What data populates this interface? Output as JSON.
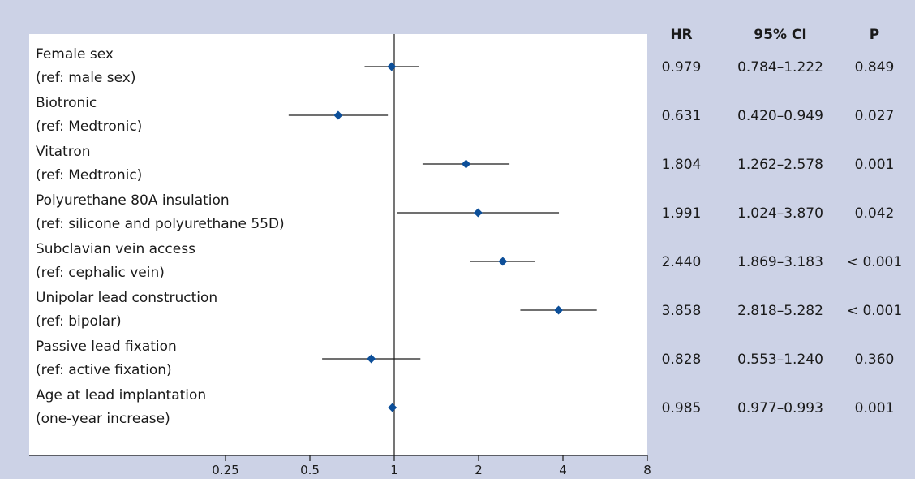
{
  "chart_data": {
    "type": "forest",
    "title": "",
    "xlabel": "",
    "ylabel": "",
    "x_scale": "log2",
    "xlim": [
      0.125,
      8
    ],
    "xticks": [
      0.25,
      0.5,
      1,
      2,
      4,
      8
    ],
    "xtick_labels": [
      "0.25",
      "0.5",
      "1",
      "2",
      "4",
      "8"
    ],
    "reference_line": 1,
    "columns": {
      "hr": "HR",
      "ci": "95% CI",
      "p": "P"
    },
    "rows": [
      {
        "label": "Female sex",
        "ref": "(ref: male sex)",
        "hr": 0.979,
        "ci_low": 0.784,
        "ci_high": 1.222,
        "hr_text": "0.979",
        "ci_text": "0.784–1.222",
        "p_text": "0.849"
      },
      {
        "label": "Biotronic",
        "ref": "(ref: Medtronic)",
        "hr": 0.631,
        "ci_low": 0.42,
        "ci_high": 0.949,
        "hr_text": "0.631",
        "ci_text": "0.420–0.949",
        "p_text": "0.027"
      },
      {
        "label": "Vitatron",
        "ref": "(ref: Medtronic)",
        "hr": 1.804,
        "ci_low": 1.262,
        "ci_high": 2.578,
        "hr_text": "1.804",
        "ci_text": "1.262–2.578",
        "p_text": "0.001"
      },
      {
        "label": "Polyurethane 80A insulation",
        "ref": "(ref: silicone and polyurethane 55D)",
        "hr": 1.991,
        "ci_low": 1.024,
        "ci_high": 3.87,
        "hr_text": "1.991",
        "ci_text": "1.024–3.870",
        "p_text": "0.042"
      },
      {
        "label": "Subclavian vein access",
        "ref": "(ref: cephalic vein)",
        "hr": 2.44,
        "ci_low": 1.869,
        "ci_high": 3.183,
        "hr_text": "2.440",
        "ci_text": "1.869–3.183",
        "p_text": "< 0.001"
      },
      {
        "label": "Unipolar lead construction",
        "ref": "(ref: bipolar)",
        "hr": 3.858,
        "ci_low": 2.818,
        "ci_high": 5.282,
        "hr_text": "3.858",
        "ci_text": "2.818–5.282",
        "p_text": "< 0.001"
      },
      {
        "label": "Passive lead fixation",
        "ref": "(ref: active fixation)",
        "hr": 0.828,
        "ci_low": 0.553,
        "ci_high": 1.24,
        "hr_text": "0.828",
        "ci_text": "0.553–1.240",
        "p_text": "0.360"
      },
      {
        "label": "Age at lead implantation",
        "ref": "(one-year increase)",
        "hr": 0.985,
        "ci_low": 0.977,
        "ci_high": 0.993,
        "hr_text": "0.985",
        "ci_text": "0.977–0.993",
        "p_text": "0.001"
      }
    ],
    "colors": {
      "marker": "#0d4f99",
      "line": "#1a1a1a",
      "panel": "#ffffff",
      "background": "#ccd2e6"
    }
  }
}
